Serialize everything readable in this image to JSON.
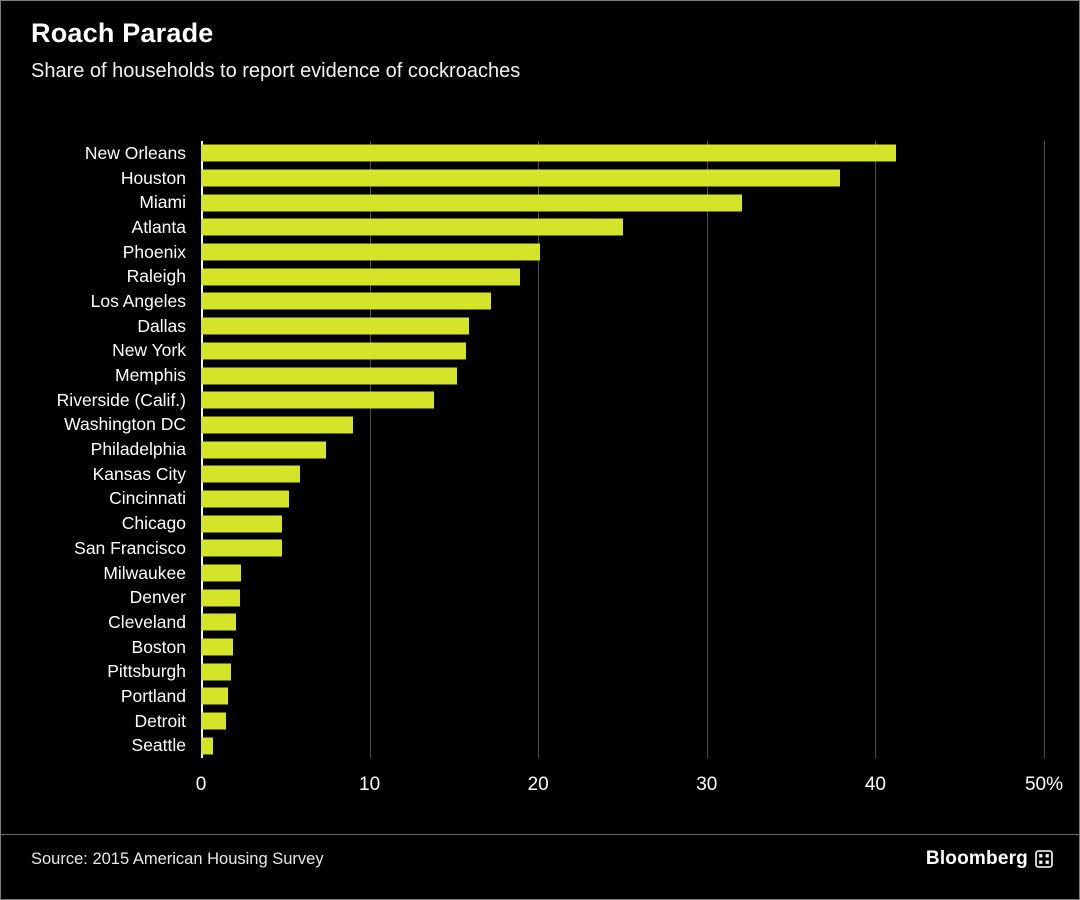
{
  "header": {
    "title": "Roach Parade",
    "subtitle": "Share of households to report evidence of cockroaches"
  },
  "chart_data": {
    "type": "bar",
    "orientation": "horizontal",
    "title": "Roach Parade",
    "subtitle": "Share of households to report evidence of cockroaches",
    "categories": [
      "New Orleans",
      "Houston",
      "Miami",
      "Atlanta",
      "Phoenix",
      "Raleigh",
      "Los Angeles",
      "Dallas",
      "New York",
      "Memphis",
      "Riverside (Calif.)",
      "Washington DC",
      "Philadelphia",
      "Kansas City",
      "Cincinnati",
      "Chicago",
      "San Francisco",
      "Milwaukee",
      "Denver",
      "Cleveland",
      "Boston",
      "Pittsburgh",
      "Portland",
      "Detroit",
      "Seattle"
    ],
    "values": [
      41.2,
      37.9,
      32.1,
      25.0,
      20.1,
      18.9,
      17.2,
      15.9,
      15.7,
      15.2,
      13.8,
      9.0,
      7.4,
      5.9,
      5.2,
      4.8,
      4.8,
      2.4,
      2.3,
      2.1,
      1.9,
      1.8,
      1.6,
      1.5,
      0.7
    ],
    "xlim": [
      0,
      50
    ],
    "xticks": [
      0,
      10,
      20,
      30,
      40,
      50
    ],
    "xtick_labels": [
      "0",
      "10",
      "20",
      "30",
      "40",
      "50%"
    ],
    "bar_color": "#d4e429",
    "grid": true,
    "background_color": "#000000"
  },
  "footer": {
    "source": "Source: 2015 American Housing Survey",
    "brand": "Bloomberg"
  }
}
